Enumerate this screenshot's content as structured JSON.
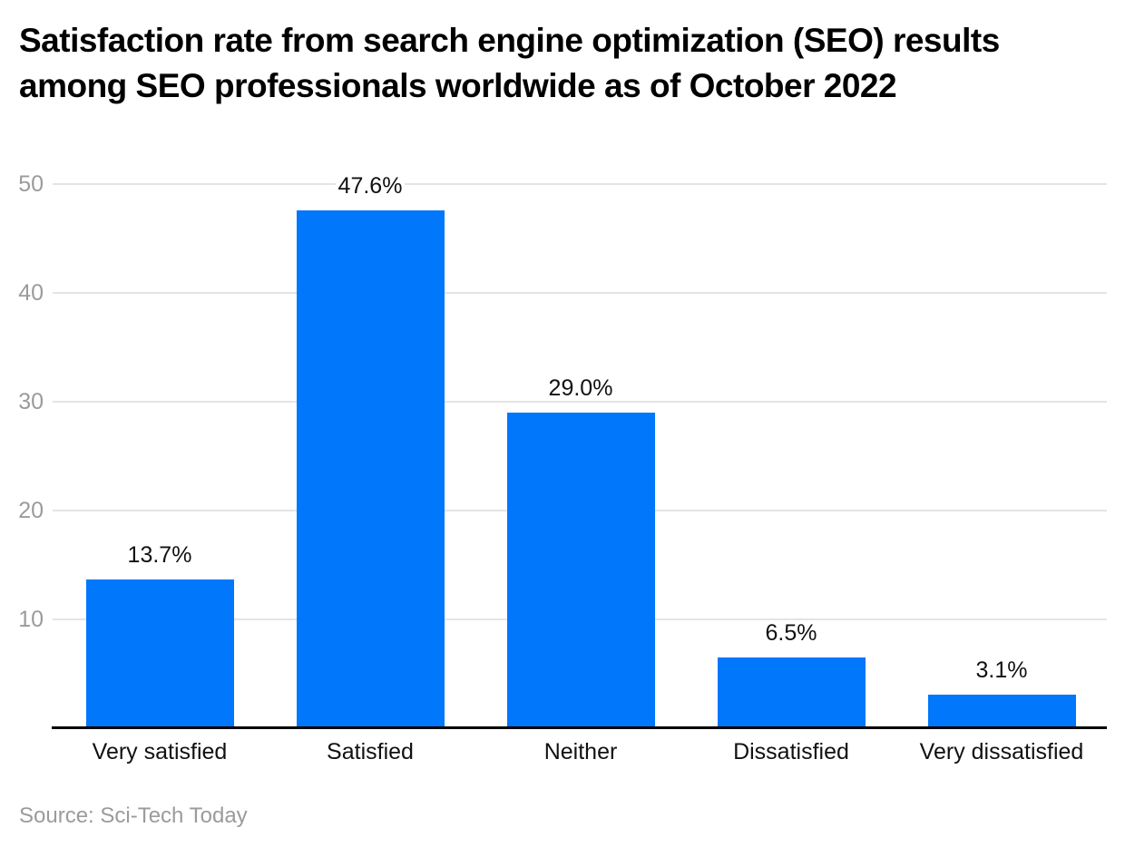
{
  "chart_data": {
    "type": "bar",
    "title": "Satisfaction rate from search engine optimization (SEO) results among SEO professionals worldwide as of October 2022",
    "categories": [
      "Very satisfied",
      "Satisfied",
      "Neither",
      "Dissatisfied",
      "Very dissatisfied"
    ],
    "values": [
      13.7,
      47.6,
      29.0,
      6.5,
      3.1
    ],
    "value_labels": [
      "13.7%",
      "47.6%",
      "29.0%",
      "6.5%",
      "3.1%"
    ],
    "unit": "%",
    "ylim": [
      0,
      50
    ],
    "yticks": [
      10,
      20,
      30,
      40,
      50
    ],
    "grid": true,
    "legend": "none",
    "xlabel": "",
    "ylabel": "",
    "bar_color": "#0177fb",
    "source": "Source: Sci-Tech Today"
  }
}
